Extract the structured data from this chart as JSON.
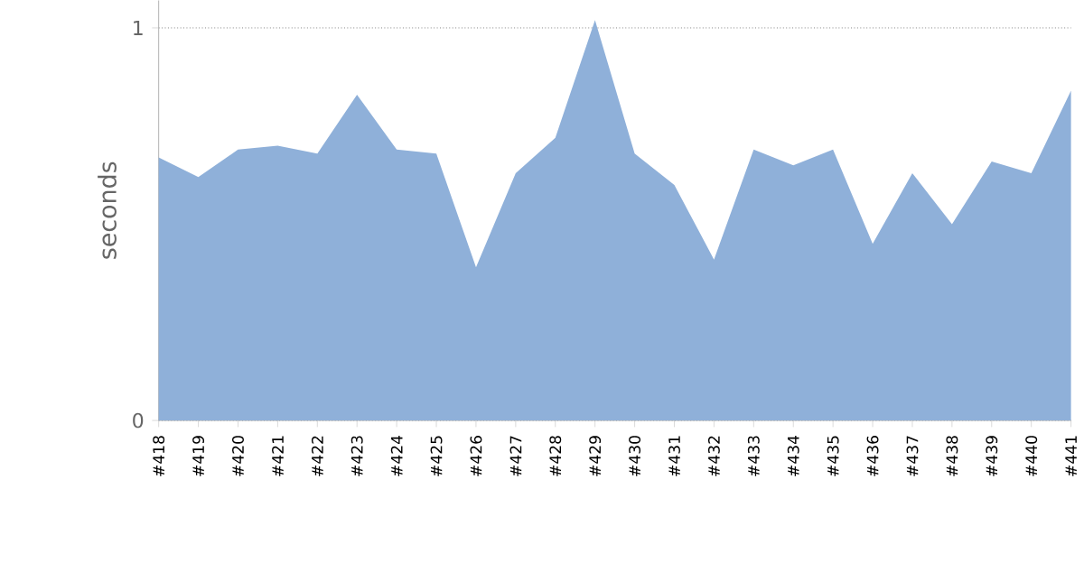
{
  "chart_data": {
    "type": "area",
    "ylabel": "seconds",
    "categories": [
      "#418",
      "#419",
      "#420",
      "#421",
      "#422",
      "#423",
      "#424",
      "#425",
      "#426",
      "#427",
      "#428",
      "#429",
      "#430",
      "#431",
      "#432",
      "#433",
      "#434",
      "#435",
      "#436",
      "#437",
      "#438",
      "#439",
      "#440",
      "#441"
    ],
    "values": [
      0.67,
      0.62,
      0.69,
      0.7,
      0.68,
      0.83,
      0.69,
      0.68,
      0.39,
      0.63,
      0.72,
      1.02,
      0.68,
      0.6,
      0.41,
      0.69,
      0.65,
      0.69,
      0.45,
      0.63,
      0.5,
      0.66,
      0.63,
      0.84
    ],
    "color": "#8fb0d9",
    "ylim": [
      0,
      1.07
    ],
    "yticks": [
      0,
      1
    ],
    "grid": "y"
  }
}
